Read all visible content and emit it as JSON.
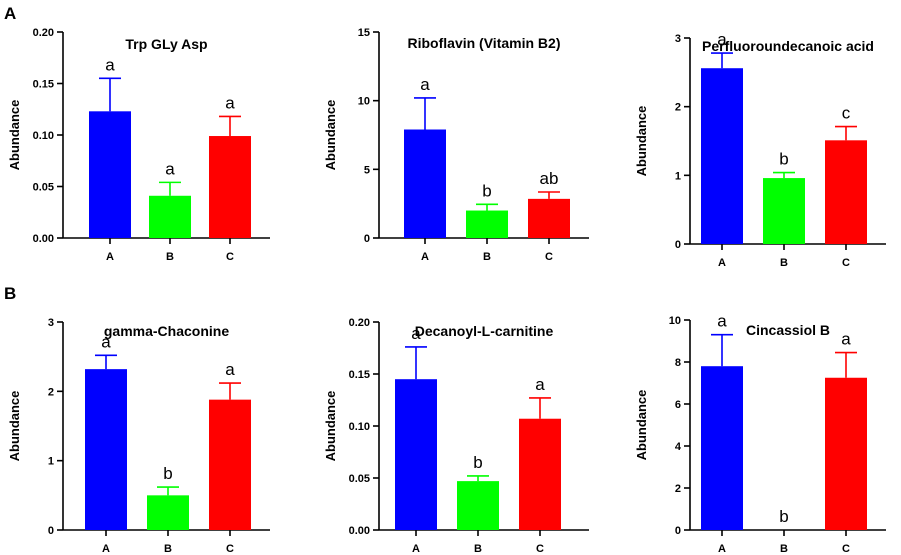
{
  "figure": {
    "panel_labels": [
      "A",
      "B"
    ]
  },
  "chart_data": [
    {
      "type": "bar",
      "title": "Trp GLy Asp",
      "xlabel": "",
      "ylabel": "Abundance",
      "categories": [
        "A",
        "B",
        "C"
      ],
      "values": [
        0.123,
        0.041,
        0.099
      ],
      "errors": [
        0.032,
        0.013,
        0.019
      ],
      "significance": [
        "a",
        "a",
        "a"
      ],
      "colors": [
        "#0000ff",
        "#00ff00",
        "#ff0000"
      ],
      "ylim": [
        0,
        0.2
      ],
      "yticks": [
        0,
        0.05,
        0.1,
        0.15,
        0.2
      ],
      "ytick_labels": [
        "0.00",
        "0.05",
        "0.10",
        "0.15",
        "0.20"
      ]
    },
    {
      "type": "bar",
      "title": "Riboflavin (Vitamin B2)",
      "xlabel": "",
      "ylabel": "Abundance",
      "categories": [
        "A",
        "B",
        "C"
      ],
      "values": [
        7.9,
        2.0,
        2.85
      ],
      "errors": [
        2.3,
        0.45,
        0.5
      ],
      "significance": [
        "a",
        "b",
        "ab"
      ],
      "colors": [
        "#0000ff",
        "#00ff00",
        "#ff0000"
      ],
      "ylim": [
        0,
        15
      ],
      "yticks": [
        0,
        5,
        10,
        15
      ],
      "ytick_labels": [
        "0",
        "5",
        "10",
        "15"
      ]
    },
    {
      "type": "bar",
      "title": "Perfluoroundecanoic acid",
      "xlabel": "",
      "ylabel": "Abundance",
      "categories": [
        "A",
        "B",
        "C"
      ],
      "values": [
        2.56,
        0.96,
        1.51
      ],
      "errors": [
        0.22,
        0.08,
        0.2
      ],
      "significance": [
        "a",
        "b",
        "c"
      ],
      "colors": [
        "#0000ff",
        "#00ff00",
        "#ff0000"
      ],
      "ylim": [
        0,
        3
      ],
      "yticks": [
        0,
        1,
        2,
        3
      ],
      "ytick_labels": [
        "0",
        "1",
        "2",
        "3"
      ]
    },
    {
      "type": "bar",
      "title": "gamma-Chaconine",
      "xlabel": "",
      "ylabel": "Abundance",
      "categories": [
        "A",
        "B",
        "C"
      ],
      "values": [
        2.32,
        0.5,
        1.88
      ],
      "errors": [
        0.2,
        0.12,
        0.24
      ],
      "significance": [
        "a",
        "b",
        "a"
      ],
      "colors": [
        "#0000ff",
        "#00ff00",
        "#ff0000"
      ],
      "ylim": [
        0,
        3
      ],
      "yticks": [
        0,
        1,
        2,
        3
      ],
      "ytick_labels": [
        "0",
        "1",
        "2",
        "3"
      ]
    },
    {
      "type": "bar",
      "title": "Decanoyl-L-carnitine",
      "xlabel": "",
      "ylabel": "Abundance",
      "categories": [
        "A",
        "B",
        "C"
      ],
      "values": [
        0.145,
        0.047,
        0.107
      ],
      "errors": [
        0.031,
        0.005,
        0.02
      ],
      "significance": [
        "a",
        "b",
        "a"
      ],
      "colors": [
        "#0000ff",
        "#00ff00",
        "#ff0000"
      ],
      "ylim": [
        0,
        0.2
      ],
      "yticks": [
        0,
        0.05,
        0.1,
        0.15,
        0.2
      ],
      "ytick_labels": [
        "0.00",
        "0.05",
        "0.10",
        "0.15",
        "0.20"
      ]
    },
    {
      "type": "bar",
      "title": "Cincassiol B",
      "xlabel": "",
      "ylabel": "Abundance",
      "categories": [
        "A",
        "B",
        "C"
      ],
      "values": [
        7.8,
        0,
        7.25
      ],
      "errors": [
        1.5,
        0,
        1.2
      ],
      "significance": [
        "a",
        "b",
        "a"
      ],
      "colors": [
        "#0000ff",
        "#00ff00",
        "#ff0000"
      ],
      "ylim": [
        0,
        10
      ],
      "yticks": [
        0,
        2,
        4,
        6,
        8,
        10
      ],
      "ytick_labels": [
        "0",
        "2",
        "4",
        "6",
        "8",
        "10"
      ]
    }
  ]
}
